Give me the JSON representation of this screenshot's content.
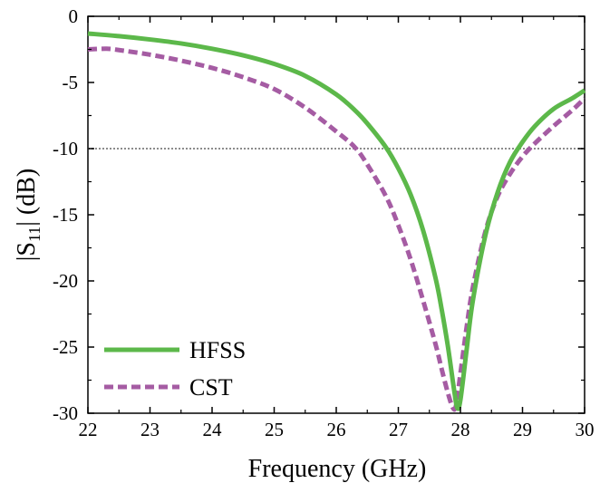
{
  "chart_data": {
    "type": "line",
    "title": "",
    "xlabel": "Frequency (GHz)",
    "ylabel": {
      "prefix": "|S",
      "subscript": "11",
      "suffix": "| (dB)"
    },
    "xlim": [
      22,
      30
    ],
    "ylim": [
      -30,
      0
    ],
    "xticks": [
      22,
      23,
      24,
      25,
      26,
      27,
      28,
      29,
      30
    ],
    "yticks": [
      0,
      -5,
      -10,
      -15,
      -20,
      -25,
      -30
    ],
    "grid": false,
    "legend_position": "bottom-left",
    "reference_line": {
      "y": -10,
      "style": "dotted",
      "color": "#8c8c8c"
    },
    "series": [
      {
        "name": "HFSS",
        "color": "#5cb84a",
        "style": "solid",
        "x": [
          22,
          22.5,
          23,
          23.5,
          24,
          24.5,
          25,
          25.5,
          26,
          26.3,
          26.5,
          26.8,
          27,
          27.2,
          27.4,
          27.6,
          27.7,
          27.8,
          27.9,
          27.95,
          28,
          28.1,
          28.2,
          28.4,
          28.6,
          28.8,
          29,
          29.2,
          29.5,
          29.8,
          30
        ],
        "y": [
          -1.3,
          -1.5,
          -1.75,
          -2.05,
          -2.45,
          -2.95,
          -3.6,
          -4.5,
          -5.9,
          -7.1,
          -8.1,
          -9.9,
          -11.5,
          -13.5,
          -16.2,
          -19.8,
          -22.2,
          -25.0,
          -28.3,
          -29.6,
          -29.0,
          -25.2,
          -21.5,
          -16.6,
          -13.3,
          -11.0,
          -9.5,
          -8.3,
          -7.0,
          -6.2,
          -5.6
        ]
      },
      {
        "name": "CST",
        "color": "#a55ca3",
        "style": "dashed",
        "x": [
          22,
          22.3,
          22.5,
          23,
          23.5,
          24,
          24.5,
          25,
          25.5,
          26,
          26.3,
          26.5,
          26.8,
          27,
          27.2,
          27.4,
          27.6,
          27.7,
          27.8,
          27.88,
          27.93,
          28,
          28.1,
          28.2,
          28.4,
          28.6,
          28.8,
          29,
          29.2,
          29.5,
          29.8,
          30
        ],
        "y": [
          -2.5,
          -2.45,
          -2.55,
          -2.9,
          -3.35,
          -3.9,
          -4.6,
          -5.5,
          -6.9,
          -8.7,
          -9.9,
          -11.2,
          -13.6,
          -15.8,
          -18.4,
          -21.5,
          -24.8,
          -26.7,
          -28.5,
          -29.6,
          -29.4,
          -27.0,
          -23.5,
          -20.5,
          -16.3,
          -13.6,
          -11.9,
          -10.6,
          -9.6,
          -8.3,
          -7.1,
          -6.2
        ]
      }
    ]
  }
}
